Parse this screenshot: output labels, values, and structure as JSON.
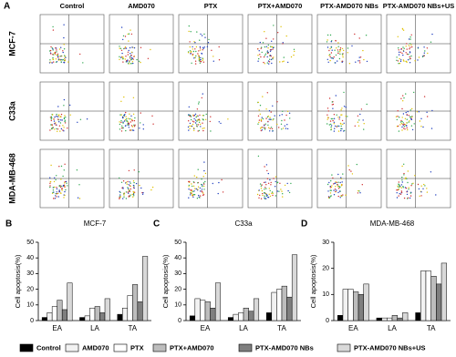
{
  "panel_a": {
    "label": "A",
    "columns": [
      "Control",
      "AMD070",
      "PTX",
      "PTX+AMD070",
      "PTX-AMD070 NBs",
      "PTX-AMD070 NBs+US"
    ],
    "rows": [
      "MCF-7",
      "C33a",
      "MDA-MB-468"
    ]
  },
  "chart_data": [
    {
      "type": "bar",
      "panel": "B",
      "title": "MCF-7",
      "y_label": "Cell apoptosis(%)",
      "categories": [
        "EA",
        "LA",
        "TA"
      ],
      "series": [
        {
          "name": "Control",
          "color": "#000000",
          "values": [
            2,
            2,
            4
          ]
        },
        {
          "name": "AMD070",
          "color": "#f2f2f2",
          "values": [
            5,
            3,
            8
          ]
        },
        {
          "name": "PTX",
          "color": "#ffffff",
          "values": [
            9,
            8,
            16
          ]
        },
        {
          "name": "PTX+AMD070",
          "color": "#bdbdbd",
          "values": [
            13,
            9,
            23
          ]
        },
        {
          "name": "PTX-AMD070 NBs",
          "color": "#7f7f7f",
          "values": [
            7,
            5,
            12
          ]
        },
        {
          "name": "PTX-AMD070 NBs+US",
          "color": "#d9d9d9",
          "values": [
            24,
            14,
            41
          ]
        }
      ],
      "ylim": [
        0,
        50
      ],
      "yticks": [
        0,
        10,
        20,
        30,
        40,
        50
      ]
    },
    {
      "type": "bar",
      "panel": "C",
      "title": "C33a",
      "y_label": "Cell apoptosis(%)",
      "categories": [
        "EA",
        "LA",
        "TA"
      ],
      "series": [
        {
          "name": "Control",
          "color": "#000000",
          "values": [
            3,
            2,
            5
          ]
        },
        {
          "name": "AMD070",
          "color": "#f2f2f2",
          "values": [
            14,
            4,
            18
          ]
        },
        {
          "name": "PTX",
          "color": "#ffffff",
          "values": [
            13,
            5,
            20
          ]
        },
        {
          "name": "PTX+AMD070",
          "color": "#bdbdbd",
          "values": [
            12,
            8,
            22
          ]
        },
        {
          "name": "PTX-AMD070 NBs",
          "color": "#7f7f7f",
          "values": [
            8,
            6,
            15
          ]
        },
        {
          "name": "PTX-AMD070 NBs+US",
          "color": "#d9d9d9",
          "values": [
            24,
            14,
            42
          ]
        }
      ],
      "ylim": [
        0,
        50
      ],
      "yticks": [
        0,
        10,
        20,
        30,
        40,
        50
      ]
    },
    {
      "type": "bar",
      "panel": "D",
      "title": "MDA-MB-468",
      "y_label": "Cell apoptosis(%)",
      "categories": [
        "EA",
        "LA",
        "TA"
      ],
      "series": [
        {
          "name": "Control",
          "color": "#000000",
          "values": [
            2,
            1,
            3
          ]
        },
        {
          "name": "AMD070",
          "color": "#f2f2f2",
          "values": [
            12,
            1,
            19
          ]
        },
        {
          "name": "PTX",
          "color": "#ffffff",
          "values": [
            12,
            1,
            19
          ]
        },
        {
          "name": "PTX+AMD070",
          "color": "#bdbdbd",
          "values": [
            11,
            2,
            17
          ]
        },
        {
          "name": "PTX-AMD070 NBs",
          "color": "#7f7f7f",
          "values": [
            10,
            1,
            14
          ]
        },
        {
          "name": "PTX-AMD070 NBs+US",
          "color": "#d9d9d9",
          "values": [
            14,
            3,
            22
          ]
        }
      ],
      "ylim": [
        0,
        30
      ],
      "yticks": [
        0,
        10,
        20,
        30
      ]
    }
  ]
}
